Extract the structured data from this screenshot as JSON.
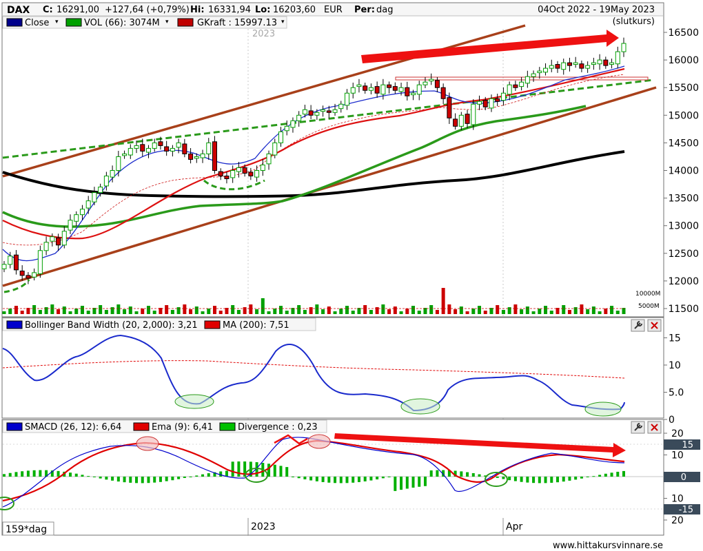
{
  "header": {
    "symbol": "DAX",
    "close_label": "C:",
    "close_value": "16291,00",
    "change": "+127,64 (+0,79%)",
    "hi_label": "Hi:",
    "hi_value": "16331,94",
    "lo_label": "Lo:",
    "lo_value": "16203,60",
    "currency": "EUR",
    "period_label": "Per:",
    "period_value": "dag",
    "date_range": "04Oct 2022 - 19May 2023",
    "price_type": "(slutkurs)"
  },
  "legend_main": [
    {
      "label": "Close",
      "color": "#00008b"
    },
    {
      "label": "VOL (66): 3074M",
      "color": "#00a000"
    },
    {
      "label": "GKraft : 15997.13",
      "color": "#c00000"
    }
  ],
  "panel_bb": {
    "legend": [
      {
        "label": "Bollinger Band Width (20, 2,000): 3,21",
        "color": "#0000cc"
      },
      {
        "label": "MA (200): 7,51",
        "color": "#e00000"
      }
    ]
  },
  "panel_macd": {
    "legend": [
      {
        "label": "SMACD (26, 12): 6,64",
        "color": "#0000cc"
      },
      {
        "label": "Ema (9): 6,41",
        "color": "#e00000"
      },
      {
        "label": "Divergence : 0,23",
        "color": "#00c000"
      }
    ],
    "box_labels": [
      "15",
      "0",
      "-15"
    ]
  },
  "xaxis": {
    "year_ghost": "2023",
    "labels": [
      "2023",
      "Apr"
    ],
    "period_box": "159*dag"
  },
  "footer": {
    "website": "www.hittakursvinnare.se"
  },
  "colors": {
    "candle_up": "#00a000",
    "candle_down": "#cc0000",
    "ma_black": "#000000",
    "ma_green": "#2a9a1a",
    "ma_red": "#dd1111",
    "bollinger": "#1a2acc",
    "trend_brown": "#a8401a",
    "arrow_red": "#ee1111"
  },
  "chart_data": [
    {
      "type": "candlestick",
      "title": "DAX",
      "ylim": [
        11400,
        16700
      ],
      "y_ticks": [
        11500,
        12000,
        12500,
        13000,
        13500,
        14000,
        14500,
        15000,
        15500,
        16000,
        16500
      ],
      "close_series": [
        12300,
        12450,
        12200,
        12100,
        12050,
        12150,
        12550,
        12700,
        12800,
        12650,
        12900,
        13100,
        13200,
        13300,
        13450,
        13600,
        13700,
        13900,
        14000,
        14250,
        14300,
        14400,
        14450,
        14350,
        14400,
        14500,
        14450,
        14350,
        14400,
        14500,
        14300,
        14200,
        14250,
        14300,
        14500,
        14000,
        13900,
        13850,
        14000,
        14050,
        13950,
        13900,
        14000,
        14100,
        14300,
        14500,
        14700,
        14800,
        14900,
        15000,
        15100,
        15000,
        15050,
        15100,
        15050,
        15100,
        15200,
        15400,
        15500,
        15550,
        15450,
        15500,
        15400,
        15550,
        15500,
        15450,
        15500,
        15350,
        15400,
        15550,
        15600,
        15650,
        15500,
        15300,
        14950,
        14800,
        15000,
        14850,
        15200,
        15250,
        15150,
        15300,
        15250,
        15400,
        15550,
        15500,
        15600,
        15700,
        15750,
        15800,
        15850,
        15900,
        15850,
        15950,
        15900,
        15950,
        15850,
        15900,
        15950,
        16000,
        15900,
        15950,
        16150,
        16300
      ],
      "annotations": [
        "2023"
      ]
    },
    {
      "type": "line",
      "series": [
        {
          "name": "Bollinger Band Width (20, 2,000)",
          "last": 3.21
        },
        {
          "name": "MA (200)",
          "last": 7.51
        }
      ],
      "y_ticks": [
        0,
        5,
        10,
        15
      ],
      "tick_labels": [
        "0",
        "5.0",
        "10",
        "15"
      ]
    },
    {
      "type": "line",
      "series": [
        {
          "name": "SMACD (26, 12)",
          "last": 6.64
        },
        {
          "name": "Ema (9)",
          "last": 6.41
        },
        {
          "name": "Divergence",
          "last": 0.23
        }
      ],
      "y_ticks": [
        -20,
        -10,
        0,
        10,
        20
      ],
      "tick_labels": [
        "20",
        "10",
        "0",
        "10",
        "20"
      ]
    }
  ]
}
